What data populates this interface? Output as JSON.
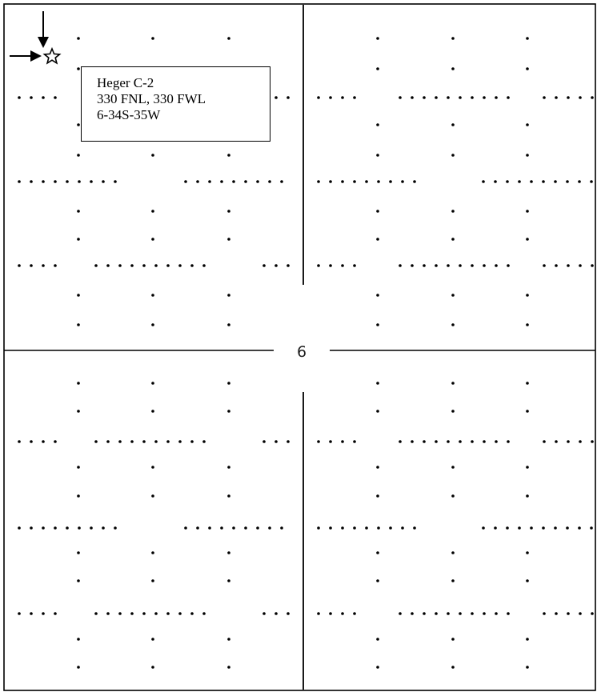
{
  "well": {
    "name": "Heger C-2",
    "footage": "330 FNL, 330 FWL",
    "location": "6-34S-35W"
  },
  "section": {
    "number": "6"
  },
  "colors": {
    "line": "#000000",
    "background": "#ffffff"
  },
  "icons": {
    "well_symbol": "star-outline-icon",
    "pointer_down": "arrow-down-icon",
    "pointer_right": "arrow-right-icon"
  }
}
